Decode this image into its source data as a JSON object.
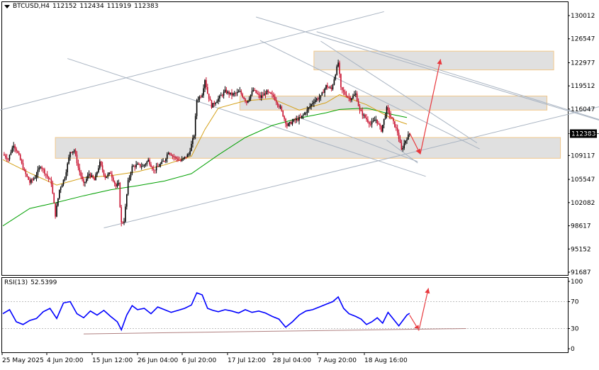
{
  "header": {
    "symbol": "BTCUSD,H4",
    "open": "112152",
    "high": "112434",
    "low": "111919",
    "close": "112383"
  },
  "rsi": {
    "label": "RSI(13)",
    "value": "52.5399",
    "ticks": [
      "100",
      "70",
      "30",
      "0"
    ],
    "levels": [
      70,
      30
    ]
  },
  "price_axis": {
    "ticks": [
      "130012",
      "126547",
      "122977",
      "119512",
      "116047",
      "112383",
      "109117",
      "105547",
      "102082",
      "98617",
      "95152",
      "91687"
    ],
    "current_price": "112383"
  },
  "time_axis": {
    "ticks": [
      "25 May 2025",
      "4 Jun 20:00",
      "15 Jun 12:00",
      "26 Jun 04:00",
      "6 Jul 20:00",
      "17 Jul 12:00",
      "28 Jul 04:00",
      "7 Aug 20:00",
      "18 Aug 16:00"
    ]
  },
  "colors": {
    "bull_candle": "#000000",
    "bear_candle": "#c8102e",
    "ma_slow": "#00a000",
    "ma_fast": "#d4a017",
    "rsi_line": "#0000ff",
    "trendline": "#a9b4c2",
    "zone_fill": "#e0e0e0",
    "zone_border": "#f2c88a",
    "arrow": "#e8383d"
  },
  "chart_data": {
    "type": "candlestick",
    "symbol": "BTCUSD",
    "timeframe": "H4",
    "ylim": [
      91687,
      131500
    ],
    "x": [
      "25 May 2025",
      "4 Jun 20:00",
      "15 Jun 12:00",
      "26 Jun 04:00",
      "6 Jul 20:00",
      "17 Jul 12:00",
      "28 Jul 04:00",
      "7 Aug 20:00",
      "18 Aug 16:00"
    ],
    "close_path": [
      [
        0,
        109300
      ],
      [
        0.4,
        108600
      ],
      [
        0.8,
        110800
      ],
      [
        1.2,
        109000
      ],
      [
        1.6,
        106700
      ],
      [
        2.0,
        105100
      ],
      [
        2.4,
        105900
      ],
      [
        2.8,
        107600
      ],
      [
        3.2,
        106300
      ],
      [
        3.6,
        105000
      ],
      [
        3.9,
        100200
      ],
      [
        4.2,
        104000
      ],
      [
        4.6,
        105900
      ],
      [
        5.0,
        109700
      ],
      [
        5.3,
        109900
      ],
      [
        5.6,
        107300
      ],
      [
        6.0,
        104800
      ],
      [
        6.4,
        106400
      ],
      [
        6.8,
        105400
      ],
      [
        7.2,
        108000
      ],
      [
        7.6,
        105900
      ],
      [
        8.0,
        106500
      ],
      [
        8.4,
        104500
      ],
      [
        8.6,
        104800
      ],
      [
        8.7,
        101600
      ],
      [
        8.8,
        99000
      ],
      [
        9.0,
        99400
      ],
      [
        9.3,
        105200
      ],
      [
        9.6,
        107400
      ],
      [
        10.0,
        107700
      ],
      [
        10.4,
        107500
      ],
      [
        10.8,
        108400
      ],
      [
        11.2,
        106900
      ],
      [
        11.6,
        107600
      ],
      [
        12.0,
        108400
      ],
      [
        12.3,
        109700
      ],
      [
        12.7,
        108900
      ],
      [
        13.2,
        108300
      ],
      [
        13.8,
        109300
      ],
      [
        14.2,
        112200
      ],
      [
        14.4,
        117400
      ],
      [
        14.8,
        118300
      ],
      [
        15.0,
        120500
      ],
      [
        15.2,
        118400
      ],
      [
        15.5,
        116500
      ],
      [
        16.0,
        117600
      ],
      [
        16.5,
        118700
      ],
      [
        17.0,
        118200
      ],
      [
        17.6,
        118600
      ],
      [
        18.1,
        117100
      ],
      [
        18.6,
        118900
      ],
      [
        19.1,
        117800
      ],
      [
        19.6,
        118600
      ],
      [
        20.1,
        117900
      ],
      [
        20.6,
        116200
      ],
      [
        21.1,
        113600
      ],
      [
        21.6,
        114300
      ],
      [
        22.1,
        114700
      ],
      [
        22.6,
        115900
      ],
      [
        23.1,
        117300
      ],
      [
        23.6,
        117900
      ],
      [
        24.0,
        119500
      ],
      [
        24.4,
        119000
      ],
      [
        24.7,
        121400
      ],
      [
        24.9,
        123000
      ],
      [
        25.1,
        119100
      ],
      [
        25.4,
        118300
      ],
      [
        25.8,
        117600
      ],
      [
        26.2,
        118300
      ],
      [
        26.5,
        115800
      ],
      [
        26.9,
        114800
      ],
      [
        27.3,
        113800
      ],
      [
        27.7,
        114500
      ],
      [
        28.1,
        112900
      ],
      [
        28.5,
        116100
      ],
      [
        28.9,
        114500
      ],
      [
        29.3,
        112600
      ],
      [
        29.6,
        109900
      ],
      [
        29.9,
        111400
      ],
      [
        30.2,
        112383
      ]
    ],
    "ma_fast": [
      [
        0,
        108500
      ],
      [
        2,
        106500
      ],
      [
        4,
        104700
      ],
      [
        6,
        105800
      ],
      [
        8,
        106100
      ],
      [
        10,
        106700
      ],
      [
        12,
        107700
      ],
      [
        14,
        109000
      ],
      [
        15,
        113000
      ],
      [
        16,
        116200
      ],
      [
        18,
        117300
      ],
      [
        20,
        117600
      ],
      [
        22,
        115900
      ],
      [
        24,
        117000
      ],
      [
        25,
        118200
      ],
      [
        27,
        116700
      ],
      [
        29,
        114500
      ],
      [
        30,
        113800
      ]
    ],
    "ma_slow": [
      [
        0,
        98600
      ],
      [
        2,
        101200
      ],
      [
        4,
        102100
      ],
      [
        6,
        103100
      ],
      [
        8,
        104000
      ],
      [
        10,
        104600
      ],
      [
        12,
        105300
      ],
      [
        14,
        106400
      ],
      [
        16,
        109200
      ],
      [
        18,
        111800
      ],
      [
        20,
        113600
      ],
      [
        22,
        114700
      ],
      [
        24,
        115500
      ],
      [
        25,
        116000
      ],
      [
        27,
        116200
      ],
      [
        29,
        115200
      ],
      [
        30,
        114800
      ]
    ],
    "rsi13": [
      [
        0,
        52
      ],
      [
        0.5,
        58
      ],
      [
        1.0,
        40
      ],
      [
        1.5,
        36
      ],
      [
        2.0,
        42
      ],
      [
        2.5,
        45
      ],
      [
        3.0,
        55
      ],
      [
        3.5,
        60
      ],
      [
        4.0,
        45
      ],
      [
        4.5,
        68
      ],
      [
        5.0,
        70
      ],
      [
        5.5,
        52
      ],
      [
        6.0,
        46
      ],
      [
        6.5,
        56
      ],
      [
        7.0,
        50
      ],
      [
        7.5,
        57
      ],
      [
        8.0,
        48
      ],
      [
        8.5,
        40
      ],
      [
        8.8,
        28
      ],
      [
        9.2,
        50
      ],
      [
        9.6,
        64
      ],
      [
        10.0,
        58
      ],
      [
        10.5,
        60
      ],
      [
        11.0,
        52
      ],
      [
        11.5,
        62
      ],
      [
        12.0,
        58
      ],
      [
        12.5,
        54
      ],
      [
        13.0,
        57
      ],
      [
        13.5,
        60
      ],
      [
        14.0,
        65
      ],
      [
        14.4,
        83
      ],
      [
        14.8,
        80
      ],
      [
        15.2,
        60
      ],
      [
        15.6,
        57
      ],
      [
        16.0,
        55
      ],
      [
        16.5,
        58
      ],
      [
        17.0,
        56
      ],
      [
        17.5,
        53
      ],
      [
        18.0,
        58
      ],
      [
        18.5,
        54
      ],
      [
        19.0,
        56
      ],
      [
        19.5,
        53
      ],
      [
        20.0,
        48
      ],
      [
        20.5,
        44
      ],
      [
        21.0,
        32
      ],
      [
        21.5,
        40
      ],
      [
        22.0,
        50
      ],
      [
        22.5,
        56
      ],
      [
        23.0,
        58
      ],
      [
        23.5,
        62
      ],
      [
        24.0,
        66
      ],
      [
        24.5,
        70
      ],
      [
        24.9,
        77
      ],
      [
        25.3,
        60
      ],
      [
        25.7,
        52
      ],
      [
        26.2,
        48
      ],
      [
        26.6,
        44
      ],
      [
        27.0,
        36
      ],
      [
        27.4,
        40
      ],
      [
        27.8,
        46
      ],
      [
        28.2,
        38
      ],
      [
        28.6,
        54
      ],
      [
        29.0,
        44
      ],
      [
        29.4,
        34
      ],
      [
        29.7,
        42
      ],
      [
        30.0,
        50
      ],
      [
        30.2,
        52.5
      ]
    ]
  }
}
